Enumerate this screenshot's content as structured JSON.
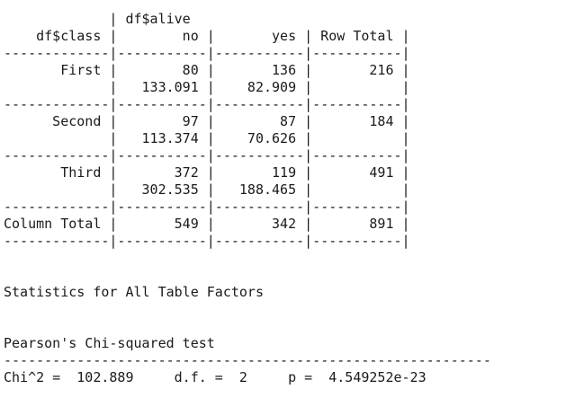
{
  "crosstab": {
    "lines": [
      "             | df$alive ",
      "    df$class |        no |       yes | Row Total | ",
      "-------------|-----------|-----------|-----------|",
      "       First |        80 |       136 |       216 | ",
      "             |   133.091 |    82.909 |           | ",
      "-------------|-----------|-----------|-----------|",
      "      Second |        97 |        87 |       184 | ",
      "             |   113.374 |    70.626 |           | ",
      "-------------|-----------|-----------|-----------|",
      "       Third |       372 |       119 |       491 | ",
      "             |   302.535 |   188.465 |           | ",
      "-------------|-----------|-----------|-----------|",
      "Column Total |       549 |       342 |       891 | ",
      "-------------|-----------|-----------|-----------|",
      "",
      "",
      "Statistics for All Table Factors",
      "",
      "",
      "Pearson's Chi-squared test ",
      "------------------------------------------------------------",
      "Chi^2 =  102.889     d.f. =  2     p =  4.549252e-23 "
    ]
  }
}
